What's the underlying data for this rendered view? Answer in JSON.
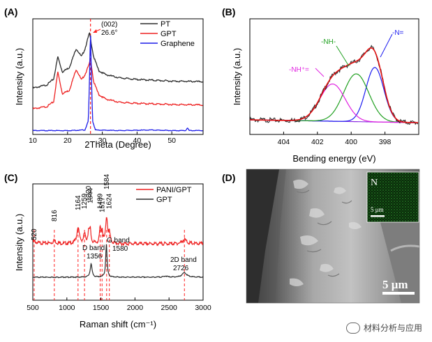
{
  "colors": {
    "pt": "#2b2b2b",
    "gpt": "#ee2222",
    "graphene": "#1c1ce8",
    "raw": "#222222",
    "fit": "#e01010",
    "n_eq": "#1c1cf0",
    "nh": "#20a020",
    "nhplus": "#e020e0",
    "base": "#8a2be2",
    "ref": "#ff2020"
  },
  "watermark": "材料分析与应用",
  "chart_data": [
    {
      "panel": "(A)",
      "type": "line",
      "xlabel": "2Theta (Degree)",
      "ylabel": "Intensity (a.u.)",
      "xlim": [
        10,
        59
      ],
      "xticks": [
        10,
        20,
        30,
        40,
        50
      ],
      "legend": {
        "placement": "top-right",
        "entries": [
          "PT",
          "GPT",
          "Graphene"
        ]
      },
      "annotation": {
        "line1": "(002)",
        "line2": "26.6°",
        "x": 26.6
      },
      "series": [
        {
          "name": "PT",
          "x": [
            10,
            14,
            16,
            17.2,
            18.5,
            20.5,
            22.5,
            24,
            25,
            26.3,
            27.5,
            29,
            31,
            35,
            40,
            50,
            59
          ],
          "y": [
            0.8,
            0.86,
            0.97,
            1.38,
            1.1,
            1.18,
            1.53,
            1.38,
            1.52,
            1.82,
            1.38,
            1.12,
            1.05,
            0.99,
            0.96,
            0.93,
            0.92
          ]
        },
        {
          "name": "GPT",
          "x": [
            10,
            14,
            16,
            17.2,
            18.5,
            20.5,
            22.5,
            24,
            25,
            26.3,
            26.6,
            27.5,
            29,
            31,
            35,
            40,
            50,
            59
          ],
          "y": [
            0.42,
            0.46,
            0.55,
            1.1,
            0.7,
            0.76,
            1.15,
            0.95,
            1.05,
            1.25,
            1.35,
            0.92,
            0.68,
            0.6,
            0.54,
            0.52,
            0.5,
            0.49
          ]
        },
        {
          "name": "Graphene",
          "x": [
            10,
            20,
            25,
            26,
            26.4,
            26.6,
            26.8,
            27.2,
            28,
            35,
            44,
            50,
            54,
            54.5,
            55,
            59
          ],
          "y": [
            0.02,
            0.02,
            0.03,
            0.2,
            1.2,
            1.95,
            1.2,
            0.2,
            0.03,
            0.02,
            0.03,
            0.02,
            0.02,
            0.07,
            0.02,
            0.02
          ]
        }
      ]
    },
    {
      "panel": "(B)",
      "type": "line",
      "xlabel": "Bending energy (eV)",
      "ylabel": "Intensity (a.u.)",
      "xlim": [
        406,
        396
      ],
      "xticks": [
        404,
        402,
        400,
        398
      ],
      "peak_labels": [
        "-NH⁺=",
        "-NH-",
        "-N="
      ],
      "series": [
        {
          "name": "-N=",
          "center": 398.6,
          "height": 0.57,
          "width": 0.75
        },
        {
          "name": "-NH-",
          "center": 399.7,
          "height": 0.5,
          "width": 1.05
        },
        {
          "name": "-NH⁺=",
          "center": 401.1,
          "height": 0.39,
          "width": 1.05
        }
      ],
      "baseline": {
        "x": [
          406,
          396
        ],
        "y": [
          0.08,
          0.05
        ]
      }
    },
    {
      "panel": "(C)",
      "type": "line",
      "xlabel": "Raman shift (cm⁻¹)",
      "ylabel": "Intensity (a.u.)",
      "xlim": [
        500,
        3000
      ],
      "xticks": [
        500,
        1000,
        1500,
        2000,
        2500,
        3000
      ],
      "legend": {
        "placement": "top-right",
        "entries": [
          "PANI/GPT",
          "GPT"
        ]
      },
      "panigpt_peaks": {
        "positions": [
          520,
          816,
          1164,
          1259,
          1320,
          1344,
          1489,
          1517,
          1584,
          1624
        ],
        "labels": [
          "520",
          "816",
          "1164",
          "1259",
          "1320",
          "1344",
          "1489",
          "1517",
          "1584",
          "1624"
        ]
      },
      "gpt_peaks": [
        {
          "name_line1": "D band",
          "name_line2": "1356",
          "x": 1356
        },
        {
          "name_line1": "G band",
          "name_line2": "1580",
          "x": 1580
        },
        {
          "name_line1": "2D band",
          "name_line2": "2726",
          "x": 2726
        }
      ],
      "ref_lines": [
        520,
        816,
        1164,
        1259,
        1489,
        1517,
        1584,
        1624,
        2726
      ]
    },
    {
      "panel": "(D)",
      "type": "image",
      "scale_bar": "5 μm",
      "inset": {
        "element": "N",
        "scale_bar": "5 μm"
      }
    }
  ]
}
